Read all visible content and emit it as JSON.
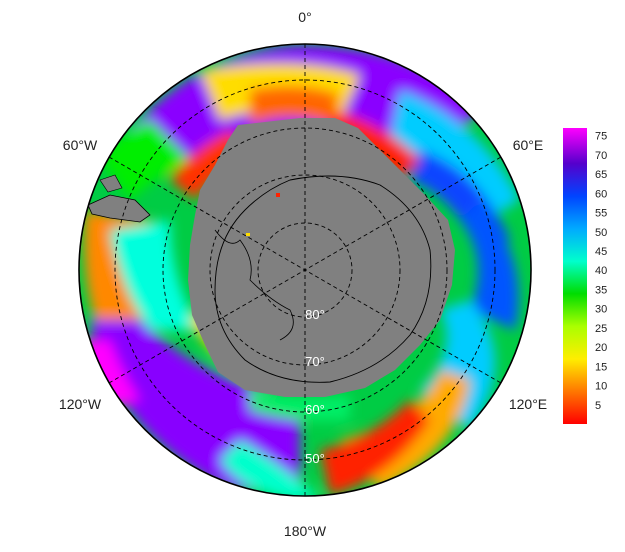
{
  "map": {
    "projection": "south-polar-stereographic",
    "longitude_labels": {
      "top": "0°",
      "upper_left": "60°W",
      "upper_right": "60°E",
      "lower_left": "120°W",
      "lower_right": "120°E",
      "bottom": "180°W"
    },
    "latitude_labels": [
      "80°",
      "70°",
      "60°",
      "50°"
    ],
    "land_color": "#808080",
    "coastline_color": "#000000",
    "graticule_style": "dashed black"
  },
  "colorbar": {
    "ticks": [
      "75",
      "70",
      "65",
      "60",
      "55",
      "50",
      "45",
      "40",
      "35",
      "30",
      "25",
      "20",
      "15",
      "10",
      "5"
    ],
    "min": 0,
    "max": 77,
    "colors": [
      "#ff0000",
      "#ff7700",
      "#ffee00",
      "#aaff00",
      "#00dd00",
      "#00ffcc",
      "#00aaff",
      "#0044ff",
      "#5500cc",
      "#ff00ff"
    ]
  }
}
